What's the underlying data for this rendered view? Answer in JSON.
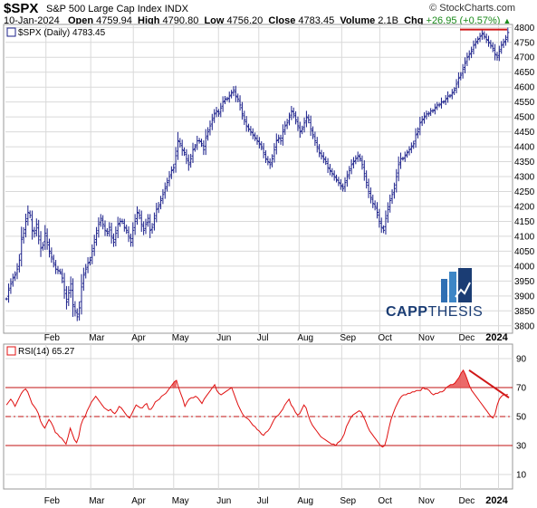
{
  "header": {
    "ticker": "$SPX",
    "name": "S&P 500 Large Cap Index",
    "exchange": "INDX",
    "credit": "© StockCharts.com",
    "date": "10-Jan-2024",
    "open_label": "Open",
    "open": "4759.94",
    "high_label": "High",
    "high": "4790.80",
    "low_label": "Low",
    "low": "4756.20",
    "close_label": "Close",
    "close": "4783.45",
    "volume_label": "Volume",
    "volume": "2.1B",
    "chg_label": "Chg",
    "chg": "+26.95 (+0.57%)"
  },
  "logo": {
    "part1": "CAPP",
    "part2": "THESIS"
  },
  "colors": {
    "price_bars": "#1a1f8a",
    "rsi_line": "#e01010",
    "level_lines": "#c01010",
    "grid": "#d9d9d9",
    "rsi_fill": "#e85050"
  },
  "chart_data": [
    {
      "type": "bar",
      "title": "$SPX (Daily) 4783.45",
      "subtype": "ohlc",
      "ylim": [
        3775,
        4810
      ],
      "yticks": [
        3800,
        3850,
        3900,
        3950,
        4000,
        4050,
        4100,
        4150,
        4200,
        4250,
        4300,
        4350,
        4400,
        4450,
        4500,
        4550,
        4600,
        4650,
        4700,
        4750,
        4800
      ],
      "xticks": [
        "Feb",
        "Mar",
        "Apr",
        "May",
        "Jun",
        "Jul",
        "Aug",
        "Sep",
        "Oct",
        "Nov",
        "Dec",
        "2024"
      ],
      "grid": true,
      "resistance_level": 4793,
      "series": [
        {
          "values": [
            3890,
            3920,
            3940,
            3960,
            3970,
            3990,
            4020,
            4090,
            4110,
            4150,
            4180,
            4170,
            4120,
            4110,
            4140,
            4100,
            4060,
            4070,
            4110,
            4080,
            4050,
            4030,
            4010,
            3990,
            3985,
            3980,
            3960,
            3920,
            3880,
            3910,
            3940,
            3870,
            3850,
            3830,
            3860,
            3930,
            3970,
            3990,
            4010,
            4020,
            4050,
            4080,
            4110,
            4140,
            4160,
            4140,
            4120,
            4110,
            4130,
            4100,
            4080,
            4110,
            4140,
            4150,
            4150,
            4130,
            4120,
            4100,
            4080,
            4120,
            4150,
            4180,
            4170,
            4140,
            4120,
            4140,
            4160,
            4120,
            4130,
            4160,
            4190,
            4200,
            4220,
            4240,
            4260,
            4280,
            4300,
            4320,
            4330,
            4370,
            4420,
            4410,
            4390,
            4380,
            4360,
            4340,
            4360,
            4390,
            4400,
            4420,
            4420,
            4410,
            4390,
            4430,
            4450,
            4470,
            4490,
            4510,
            4520,
            4510,
            4530,
            4550,
            4560,
            4560,
            4570,
            4580,
            4590,
            4570,
            4560,
            4540,
            4510,
            4490,
            4470,
            4460,
            4450,
            4440,
            4430,
            4420,
            4410,
            4400,
            4380,
            4360,
            4350,
            4340,
            4360,
            4390,
            4420,
            4430,
            4420,
            4450,
            4470,
            4480,
            4500,
            4520,
            4510,
            4490,
            4470,
            4450,
            4460,
            4480,
            4500,
            4490,
            4460,
            4440,
            4420,
            4400,
            4380,
            4370,
            4360,
            4350,
            4330,
            4320,
            4310,
            4300,
            4290,
            4280,
            4270,
            4260,
            4280,
            4300,
            4320,
            4340,
            4350,
            4360,
            4370,
            4360,
            4340,
            4310,
            4280,
            4250,
            4230,
            4210,
            4200,
            4180,
            4150,
            4130,
            4120,
            4160,
            4190,
            4220,
            4240,
            4260,
            4300,
            4340,
            4360,
            4360,
            4370,
            4380,
            4390,
            4400,
            4410,
            4440,
            4450,
            4480,
            4490,
            4500,
            4510,
            4510,
            4520,
            4520,
            4530,
            4540,
            4540,
            4550,
            4550,
            4560,
            4570,
            4570,
            4580,
            4590,
            4610,
            4630,
            4640,
            4660,
            4680,
            4700,
            4710,
            4720,
            4740,
            4750,
            4760,
            4770,
            4780,
            4770,
            4760,
            4750,
            4740,
            4730,
            4710,
            4700,
            4720,
            4740,
            4750,
            4760,
            4783
          ]
        }
      ]
    },
    {
      "type": "line",
      "title": "RSI(14) 65.27",
      "ylim": [
        0,
        100
      ],
      "yticks": [
        10,
        30,
        50,
        70,
        90
      ],
      "reference_lines": [
        30,
        50,
        70
      ],
      "xticks": [
        "Feb",
        "Mar",
        "Apr",
        "May",
        "Jun",
        "Jul",
        "Aug",
        "Sep",
        "Oct",
        "Nov",
        "Dec",
        "2024"
      ],
      "series": [
        {
          "name": "RSI(14)",
          "values": [
            58,
            60,
            62,
            60,
            57,
            60,
            63,
            66,
            68,
            69,
            67,
            63,
            59,
            57,
            55,
            52,
            47,
            44,
            42,
            45,
            48,
            46,
            43,
            39,
            38,
            36,
            35,
            33,
            31,
            36,
            42,
            38,
            34,
            32,
            36,
            44,
            48,
            50,
            54,
            57,
            60,
            62,
            64,
            62,
            60,
            58,
            56,
            55,
            54,
            55,
            53,
            52,
            54,
            57,
            56,
            54,
            52,
            50,
            49,
            52,
            55,
            58,
            57,
            56,
            56,
            58,
            59,
            55,
            55,
            57,
            60,
            61,
            62,
            64,
            65,
            66,
            68,
            70,
            72,
            74,
            75,
            70,
            66,
            62,
            57,
            60,
            62,
            63,
            63,
            64,
            63,
            61,
            59,
            62,
            64,
            66,
            68,
            70,
            72,
            68,
            66,
            65,
            66,
            67,
            68,
            69,
            70,
            66,
            62,
            58,
            55,
            52,
            50,
            49,
            48,
            46,
            44,
            43,
            41,
            40,
            38,
            37,
            39,
            40,
            42,
            45,
            48,
            50,
            51,
            53,
            55,
            58,
            60,
            62,
            58,
            56,
            53,
            51,
            52,
            55,
            58,
            56,
            51,
            47,
            44,
            42,
            40,
            38,
            36,
            35,
            34,
            33,
            32,
            31,
            31,
            30,
            32,
            33,
            35,
            38,
            43,
            46,
            49,
            51,
            52,
            53,
            54,
            53,
            50,
            47,
            43,
            40,
            38,
            36,
            34,
            32,
            30,
            29,
            30,
            35,
            42,
            48,
            52,
            56,
            59,
            62,
            64,
            65,
            65,
            66,
            66,
            67,
            67,
            68,
            68,
            68,
            70,
            69,
            69,
            68,
            66,
            65,
            66,
            66,
            67,
            67,
            68,
            70,
            71,
            72,
            72,
            73,
            75,
            77,
            80,
            82,
            79,
            75,
            71,
            68,
            66,
            64,
            62,
            60,
            58,
            56,
            54,
            52,
            50,
            49,
            52,
            58,
            62,
            64,
            65,
            65,
            65.27
          ]
        }
      ]
    }
  ]
}
